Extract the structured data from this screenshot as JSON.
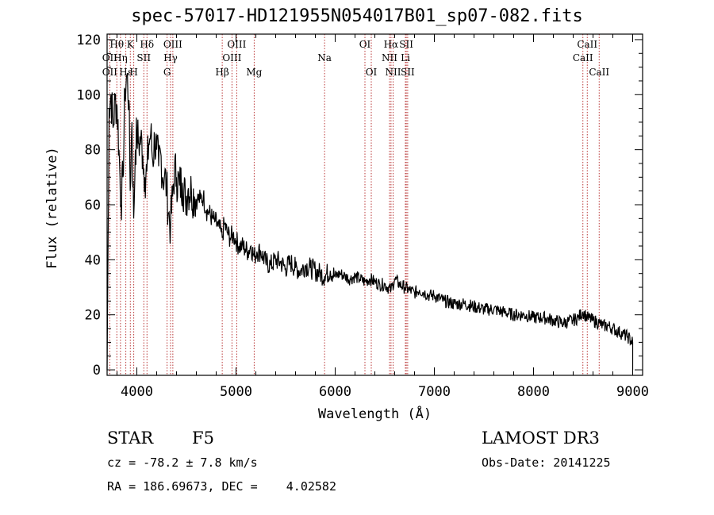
{
  "header": {
    "title": "spec-57017-HD121955N054017B01_sp07-082.fits"
  },
  "info": {
    "object_class": "STAR",
    "subclass": "F5",
    "survey": "LAMOST DR3",
    "cz": "cz = -78.2 ± 7.8 km/s",
    "obs_date": "Obs-Date: 20141225",
    "radec": "RA = 186.69673, DEC =    4.02582"
  },
  "colors": {
    "line": "#000000",
    "marker": "#b22222",
    "axis": "#000000",
    "background": "#ffffff"
  },
  "chart_data": {
    "type": "line",
    "title": "spec-57017-HD121955N054017B01_sp07-082.fits",
    "xlabel": "Wavelength (Å)",
    "ylabel": "Flux (relative)",
    "xlim": [
      3700,
      9100
    ],
    "ylim": [
      -2,
      122
    ],
    "xticks": [
      4000,
      5000,
      6000,
      7000,
      8000,
      9000
    ],
    "yticks": [
      0,
      20,
      40,
      60,
      80,
      100,
      120
    ],
    "x_minor_step": 200,
    "y_minor_step": 5,
    "series": [
      {
        "name": "flux",
        "x": [
          3700,
          3720,
          3740,
          3760,
          3780,
          3800,
          3820,
          3840,
          3860,
          3880,
          3900,
          3920,
          3933,
          3950,
          3968,
          3985,
          4000,
          4020,
          4040,
          4060,
          4080,
          4101,
          4120,
          4140,
          4160,
          4180,
          4200,
          4220,
          4240,
          4260,
          4280,
          4300,
          4320,
          4340,
          4360,
          4380,
          4400,
          4430,
          4460,
          4490,
          4520,
          4550,
          4580,
          4610,
          4640,
          4670,
          4700,
          4730,
          4760,
          4790,
          4820,
          4850,
          4861,
          4880,
          4910,
          4940,
          4970,
          5000,
          5030,
          5060,
          5090,
          5120,
          5150,
          5183,
          5210,
          5250,
          5300,
          5350,
          5400,
          5450,
          5500,
          5550,
          5600,
          5650,
          5700,
          5750,
          5800,
          5850,
          5893,
          5950,
          6000,
          6050,
          6100,
          6150,
          6200,
          6250,
          6300,
          6350,
          6400,
          6450,
          6500,
          6563,
          6600,
          6650,
          6700,
          6750,
          6800,
          6850,
          6900,
          6950,
          7000,
          7100,
          7200,
          7300,
          7400,
          7500,
          7600,
          7700,
          7800,
          7900,
          8000,
          8100,
          8200,
          8300,
          8400,
          8450,
          8498,
          8542,
          8600,
          8662,
          8700,
          8750,
          8800,
          8850,
          8900,
          8950,
          9000
        ],
        "values": [
          0,
          95,
          100,
          88,
          98,
          96,
          80,
          60,
          70,
          102,
          107,
          98,
          65,
          90,
          55,
          80,
          86,
          82,
          84,
          78,
          70,
          72,
          82,
          86,
          76,
          84,
          80,
          74,
          79,
          70,
          71,
          66,
          57,
          52,
          63,
          73,
          70,
          67,
          68,
          62,
          66,
          65,
          63,
          62,
          62,
          63,
          58,
          57,
          55,
          54,
          52,
          50,
          48,
          53,
          50,
          48,
          49,
          47,
          45,
          45,
          44,
          43,
          45,
          41,
          43,
          43,
          39,
          38,
          40,
          39,
          37,
          39,
          37,
          36,
          38,
          37,
          36,
          35,
          34,
          36,
          34,
          35,
          34,
          33,
          34,
          33,
          32,
          33,
          32,
          31,
          31,
          29,
          33,
          31,
          30,
          29,
          28,
          29,
          28,
          27,
          27,
          25,
          24,
          24,
          23,
          22,
          22,
          21,
          20,
          20,
          19,
          19,
          18,
          17,
          18,
          19,
          21,
          19,
          18,
          17,
          16,
          16,
          15,
          14,
          13,
          12,
          10
        ]
      }
    ],
    "annotations": [
      {
        "label": "Hθ",
        "x": 3798,
        "row": 1
      },
      {
        "label": "OII",
        "x": 3727,
        "row": 2
      },
      {
        "label": "OII",
        "x": 3727,
        "row": 3
      },
      {
        "label": "Hη",
        "x": 3835,
        "row": 2
      },
      {
        "label": "Hε",
        "x": 3889,
        "row": 3
      },
      {
        "label": "K",
        "x": 3934,
        "row": 1
      },
      {
        "label": "H",
        "x": 3969,
        "row": 3
      },
      {
        "label": "SII",
        "x": 4070,
        "row": 2
      },
      {
        "label": "Hδ",
        "x": 4102,
        "row": 1
      },
      {
        "label": "OIII",
        "x": 4363,
        "row": 1
      },
      {
        "label": "Hγ",
        "x": 4340,
        "row": 2
      },
      {
        "label": "G",
        "x": 4305,
        "row": 3
      },
      {
        "label": "OIII",
        "x": 5007,
        "row": 1
      },
      {
        "label": "OIII",
        "x": 4959,
        "row": 2
      },
      {
        "label": "Hβ",
        "x": 4861,
        "row": 3
      },
      {
        "label": "Mg",
        "x": 5183,
        "row": 3
      },
      {
        "label": "Na",
        "x": 5893,
        "row": 2
      },
      {
        "label": "OI",
        "x": 6300,
        "row": 1
      },
      {
        "label": "OI",
        "x": 6364,
        "row": 3
      },
      {
        "label": "Hα",
        "x": 6563,
        "row": 1
      },
      {
        "label": "SII",
        "x": 6717,
        "row": 1
      },
      {
        "label": "NII",
        "x": 6548,
        "row": 2
      },
      {
        "label": "Li",
        "x": 6708,
        "row": 2
      },
      {
        "label": "NII",
        "x": 6584,
        "row": 3
      },
      {
        "label": "SII",
        "x": 6731,
        "row": 3
      },
      {
        "label": "CaII",
        "x": 8542,
        "row": 1
      },
      {
        "label": "CaII",
        "x": 8498,
        "row": 2
      },
      {
        "label": "CaII",
        "x": 8662,
        "row": 3
      }
    ]
  }
}
